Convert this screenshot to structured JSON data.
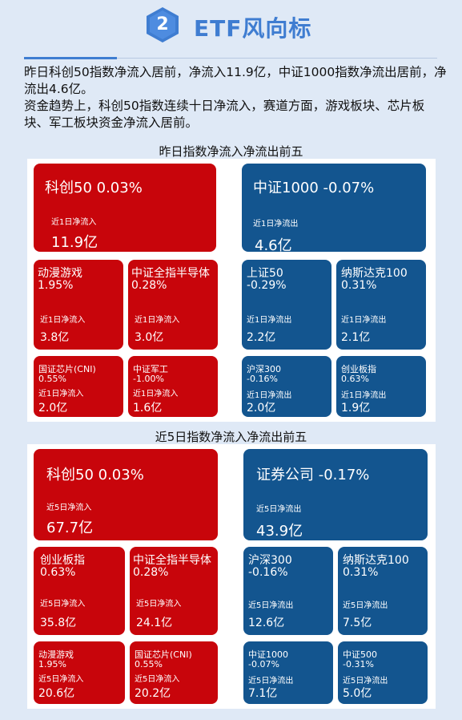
{
  "header": {
    "badge_number": "2",
    "title": "ETF风向标"
  },
  "summary": {
    "line1": "昨日科创50指数净流入居前，净流入11.9亿，中证1000指数净流出居前，净流出4.6亿。",
    "line2": "资金趋势上，科创50指数连续十日净流入，赛道方面，游戏板块、芯片板块、军工板块资金净流入居前。"
  },
  "yesterday": {
    "title": "昨日指数净流入净流出前五",
    "inflow": [
      {
        "name": "科创50 0.03%",
        "label": "近1日净流入",
        "value": "11.9亿"
      },
      {
        "name": "动漫游戏",
        "change": "1.95%",
        "label": "近1日净流入",
        "value": "3.8亿"
      },
      {
        "name": "中证全指半导体",
        "change": "0.28%",
        "label": "近1日净流入",
        "value": "3.0亿"
      },
      {
        "name": "国证芯片(CNI)",
        "change": "0.55%",
        "label": "近1日净流入",
        "value": "2.0亿"
      },
      {
        "name": "中证军工",
        "change": "-1.00%",
        "label": "近1日净流入",
        "value": "1.6亿"
      }
    ],
    "outflow": [
      {
        "name": "中证1000 -0.07%",
        "label": "近1日净流出",
        "value": "4.6亿"
      },
      {
        "name": "上证50",
        "change": "-0.29%",
        "label": "近1日净流出",
        "value": "2.2亿"
      },
      {
        "name": "纳斯达克100",
        "change": "0.31%",
        "label": "近1日净流出",
        "value": "2.1亿"
      },
      {
        "name": "沪深300",
        "change": "-0.16%",
        "label": "近1日净流出",
        "value": "2.0亿"
      },
      {
        "name": "创业板指",
        "change": "0.63%",
        "label": "近1日净流出",
        "value": "1.9亿"
      }
    ]
  },
  "five_day": {
    "title": "近5日指数净流入净流出前五",
    "inflow": [
      {
        "name": "科创50 0.03%",
        "label": "近5日净流入",
        "value": "67.7亿"
      },
      {
        "name": "创业板指",
        "change": "0.63%",
        "label": "近5日净流入",
        "value": "35.8亿"
      },
      {
        "name": "中证全指半导体",
        "change": "0.28%",
        "label": "近5日净流入",
        "value": "24.1亿"
      },
      {
        "name": "动漫游戏",
        "change": "1.95%",
        "label": "近5日净流入",
        "value": "20.6亿"
      },
      {
        "name": "国证芯片(CNI)",
        "change": "0.55%",
        "label": "近5日净流入",
        "value": "20.2亿"
      }
    ],
    "outflow": [
      {
        "name": "证券公司 -0.17%",
        "label": "近5日净流出",
        "value": "43.9亿"
      },
      {
        "name": "沪深300",
        "change": "-0.16%",
        "label": "近5日净流出",
        "value": "12.6亿"
      },
      {
        "name": "纳斯达克100",
        "change": "0.31%",
        "label": "近5日净流出",
        "value": "7.5亿"
      },
      {
        "name": "中证1000",
        "change": "-0.07%",
        "label": "近5日净流出",
        "value": "7.1亿"
      },
      {
        "name": "中证500",
        "change": "-0.31%",
        "label": "近5日净流出",
        "value": "5.0亿"
      }
    ]
  },
  "colors": {
    "inflow": "#c8050b",
    "outflow": "#13558f",
    "accent": "#3f7dd1"
  }
}
